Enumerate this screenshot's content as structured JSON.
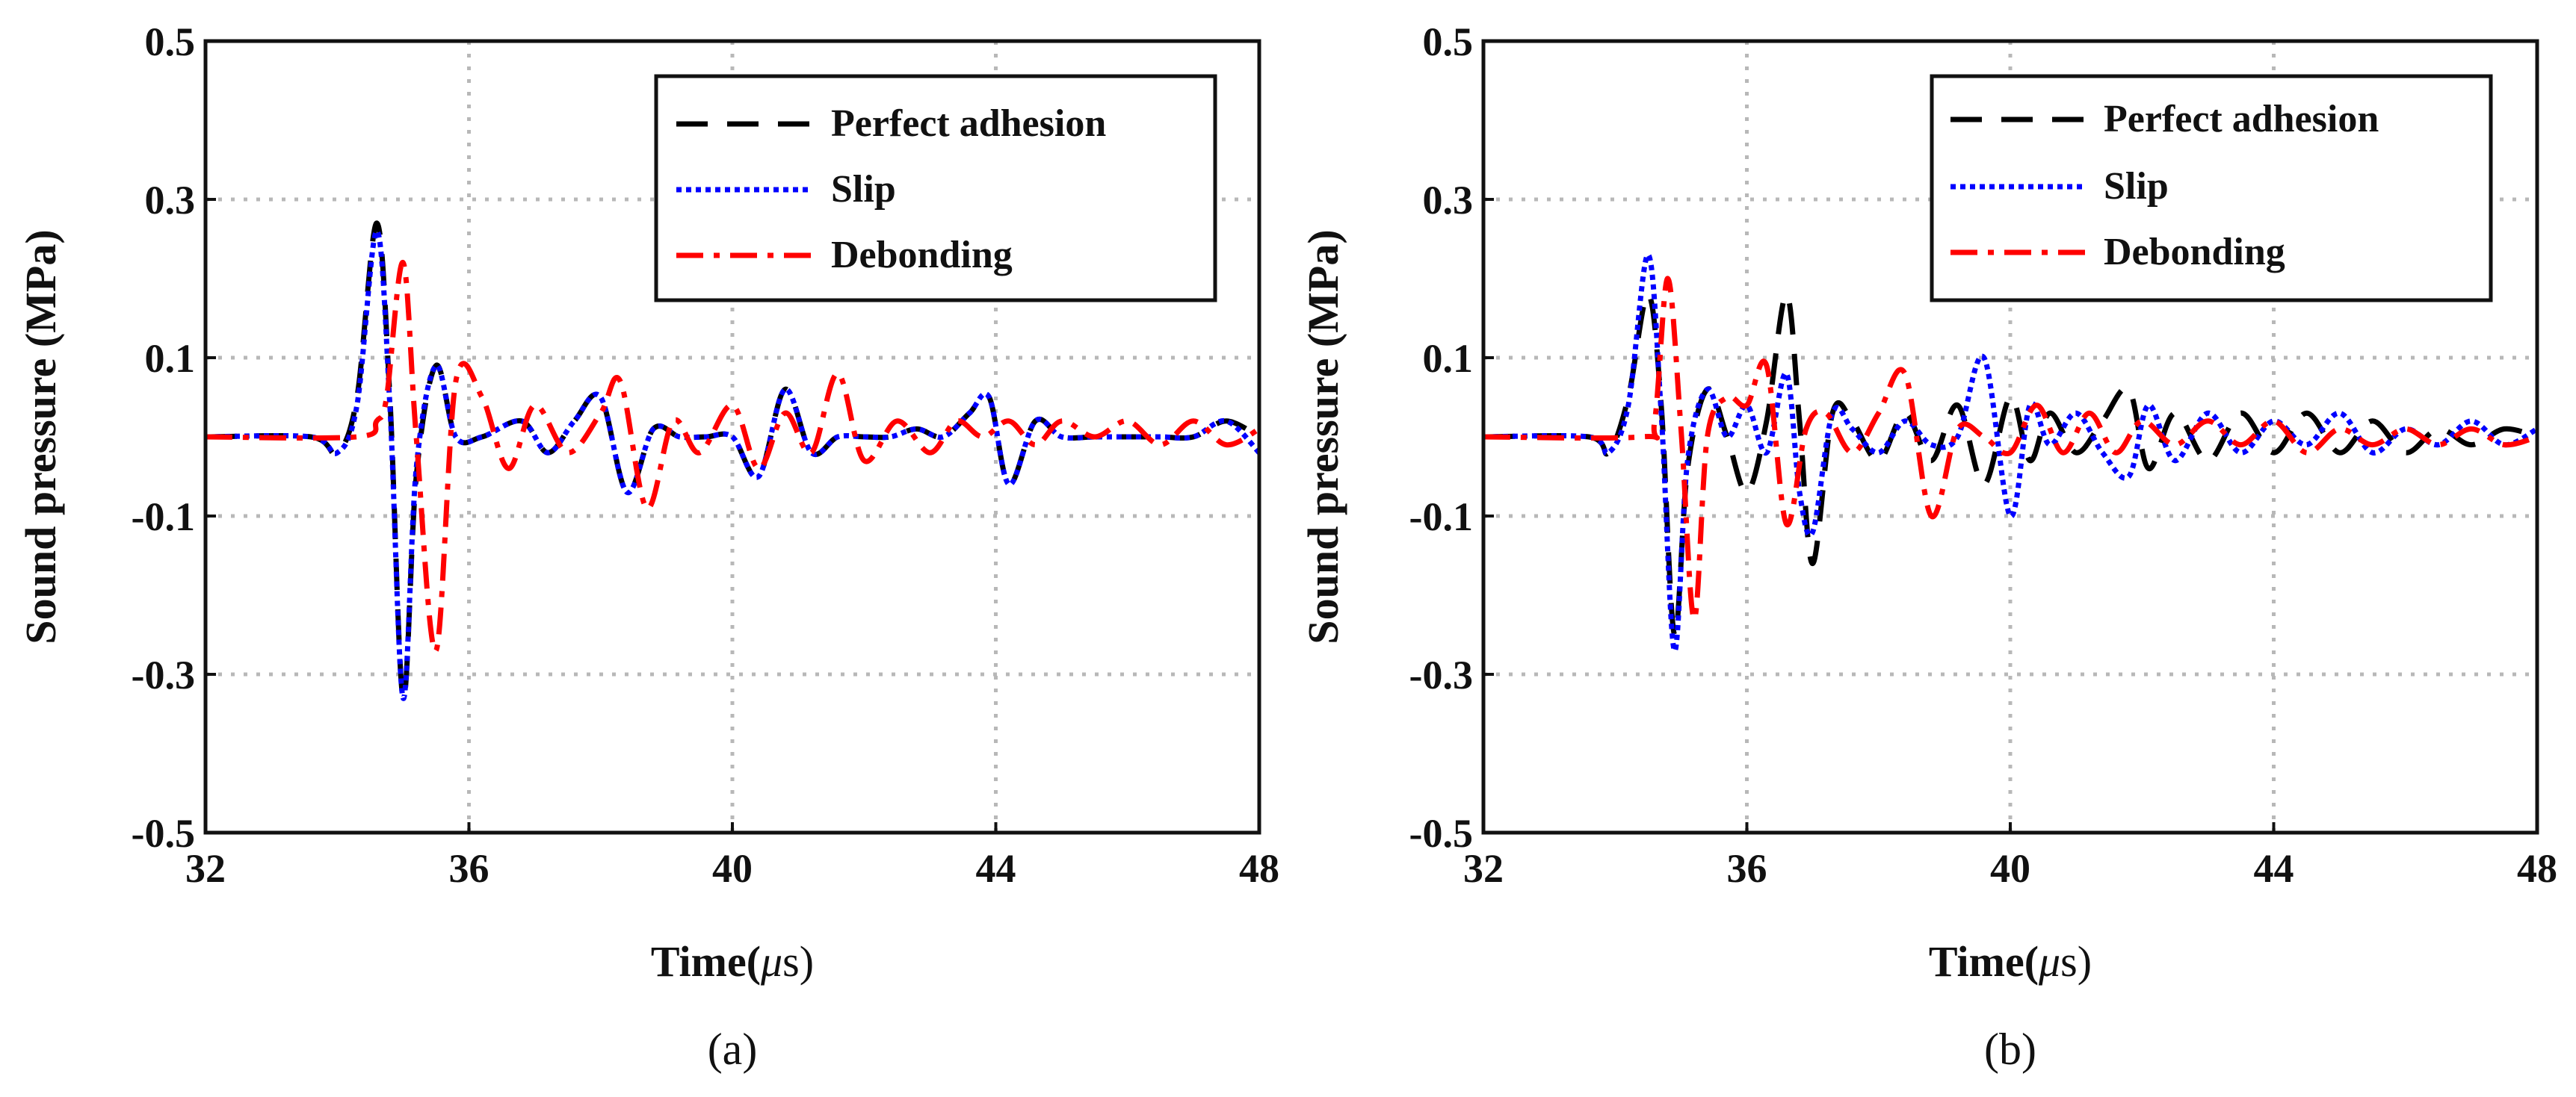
{
  "colors": {
    "perfect": "#000000",
    "slip": "#0000ff",
    "debonding": "#ff0000",
    "grid": "#b8b8b8"
  },
  "chart_data": [
    {
      "type": "line",
      "caption": "(a)",
      "xlabel_text": "Time(",
      "xlabel_mu": "μ",
      "xlabel_unit": "s)",
      "ylabel": "Sound pressure (MPa)",
      "xlim": [
        32,
        48
      ],
      "ylim": [
        -0.5,
        0.5
      ],
      "xticks": [
        32,
        36,
        40,
        44,
        48
      ],
      "yticks": [
        -0.5,
        -0.3,
        -0.1,
        0.1,
        0.3,
        0.5
      ],
      "xtick_labels": [
        "32",
        "36",
        "40",
        "44",
        "48"
      ],
      "ytick_labels": [
        "-0.5",
        "-0.3",
        "-0.1",
        "0.1",
        "0.3",
        "0.5"
      ],
      "grid": true,
      "legend_position": "top-right",
      "series": [
        {
          "name": "Perfect adhesion",
          "style": "dashed",
          "color": "#000000",
          "x": [
            32,
            33.6,
            34.0,
            34.3,
            34.6,
            34.8,
            35.0,
            35.2,
            35.5,
            35.8,
            36.2,
            36.8,
            37.2,
            37.6,
            38.0,
            38.4,
            38.8,
            39.2,
            39.6,
            40.0,
            40.4,
            40.8,
            41.2,
            41.6,
            42.0,
            42.4,
            42.8,
            43.2,
            43.6,
            43.9,
            44.2,
            44.6,
            45.0,
            45.5,
            46.0,
            46.5,
            47.0,
            47.5,
            48.0
          ],
          "y": [
            0,
            0,
            -0.02,
            0.05,
            0.27,
            0.05,
            -0.33,
            -0.05,
            0.09,
            0.0,
            0.0,
            0.02,
            -0.02,
            0.02,
            0.05,
            -0.07,
            0.01,
            0.0,
            0.0,
            0.0,
            -0.05,
            0.06,
            -0.02,
            0.0,
            0.0,
            0.0,
            0.01,
            0.0,
            0.03,
            0.05,
            -0.06,
            0.02,
            0.0,
            0.0,
            0.0,
            0.0,
            0.0,
            0.02,
            0.0
          ]
        },
        {
          "name": "Slip",
          "style": "dotted",
          "color": "#0000ff",
          "x": [
            32,
            33.6,
            34.0,
            34.3,
            34.6,
            34.8,
            35.0,
            35.2,
            35.5,
            35.8,
            36.2,
            36.8,
            37.2,
            37.6,
            38.0,
            38.4,
            38.8,
            39.2,
            39.6,
            40.0,
            40.4,
            40.8,
            41.2,
            41.6,
            42.0,
            42.4,
            42.8,
            43.2,
            43.6,
            43.9,
            44.2,
            44.6,
            45.0,
            45.5,
            46.0,
            46.5,
            47.0,
            47.5,
            48.0
          ],
          "y": [
            0,
            0,
            -0.02,
            0.04,
            0.26,
            0.04,
            -0.33,
            -0.04,
            0.09,
            0.0,
            0.0,
            0.02,
            -0.02,
            0.02,
            0.05,
            -0.07,
            0.01,
            0.0,
            0.0,
            0.0,
            -0.05,
            0.06,
            -0.02,
            0.0,
            0.0,
            0.0,
            0.01,
            0.0,
            0.03,
            0.05,
            -0.06,
            0.02,
            0.0,
            0.0,
            0.0,
            0.0,
            0.0,
            0.02,
            -0.02
          ]
        },
        {
          "name": "Debonding",
          "style": "dashdot",
          "color": "#ff0000",
          "x": [
            32,
            34.3,
            34.6,
            34.75,
            35.0,
            35.2,
            35.5,
            35.8,
            36.2,
            36.6,
            37.0,
            37.5,
            38.0,
            38.3,
            38.7,
            39.1,
            39.5,
            40.0,
            40.4,
            40.8,
            41.2,
            41.6,
            42.0,
            42.5,
            43.0,
            43.4,
            43.8,
            44.2,
            44.6,
            45.0,
            45.5,
            46.0,
            46.5,
            47.0,
            47.5,
            48.0
          ],
          "y": [
            0,
            0,
            0.02,
            0.05,
            0.22,
            0.0,
            -0.27,
            0.07,
            0.05,
            -0.04,
            0.04,
            -0.02,
            0.03,
            0.07,
            -0.09,
            0.02,
            -0.02,
            0.04,
            -0.04,
            0.03,
            -0.02,
            0.08,
            -0.03,
            0.02,
            -0.02,
            0.02,
            0.0,
            0.02,
            -0.01,
            0.02,
            0.0,
            0.02,
            -0.01,
            0.02,
            -0.01,
            0.01
          ]
        }
      ]
    },
    {
      "type": "line",
      "caption": "(b)",
      "xlabel_text": "Time(",
      "xlabel_mu": "μ",
      "xlabel_unit": "s)",
      "ylabel": "Sound pressure (MPa)",
      "xlim": [
        32,
        48
      ],
      "ylim": [
        -0.5,
        0.5
      ],
      "xticks": [
        32,
        36,
        40,
        44,
        48
      ],
      "yticks": [
        -0.5,
        -0.3,
        -0.1,
        0.1,
        0.3,
        0.5
      ],
      "xtick_labels": [
        "32",
        "36",
        "40",
        "44",
        "48"
      ],
      "ytick_labels": [
        "-0.5",
        "-0.3",
        "-0.1",
        "0.1",
        "0.3",
        "0.5"
      ],
      "grid": true,
      "legend_position": "top-right",
      "series": [
        {
          "name": "Perfect adhesion",
          "style": "dashed",
          "color": "#000000",
          "x": [
            32,
            33.6,
            33.9,
            34.2,
            34.5,
            34.7,
            34.9,
            35.1,
            35.4,
            35.7,
            36.0,
            36.3,
            36.6,
            36.8,
            37.0,
            37.3,
            37.6,
            38.0,
            38.4,
            38.8,
            39.2,
            39.6,
            40.0,
            40.3,
            40.6,
            41.0,
            41.4,
            41.8,
            42.1,
            42.5,
            43.0,
            43.5,
            44.0,
            44.5,
            45.0,
            45.5,
            46.0,
            46.5,
            47.0,
            47.5,
            48.0
          ],
          "y": [
            0,
            0,
            -0.02,
            0.05,
            0.18,
            0.04,
            -0.25,
            -0.04,
            0.06,
            0.0,
            -0.07,
            0.02,
            0.18,
            0.02,
            -0.16,
            0.03,
            0.02,
            -0.03,
            0.03,
            -0.03,
            0.04,
            -0.06,
            0.05,
            -0.03,
            0.03,
            -0.02,
            0.02,
            0.06,
            -0.04,
            0.03,
            -0.03,
            0.03,
            -0.02,
            0.03,
            -0.02,
            0.02,
            -0.02,
            0.01,
            -0.01,
            0.01,
            0.0
          ]
        },
        {
          "name": "Slip",
          "style": "dotted",
          "color": "#0000ff",
          "x": [
            32,
            33.6,
            33.9,
            34.2,
            34.5,
            34.7,
            34.9,
            35.1,
            35.4,
            35.7,
            36.0,
            36.3,
            36.6,
            36.8,
            37.0,
            37.3,
            37.6,
            38.0,
            38.4,
            38.8,
            39.2,
            39.6,
            40.0,
            40.3,
            40.6,
            41.0,
            41.4,
            41.8,
            42.1,
            42.5,
            43.0,
            43.5,
            44.0,
            44.5,
            45.0,
            45.5,
            46.0,
            46.5,
            47.0,
            47.5,
            48.0
          ],
          "y": [
            0,
            0,
            -0.02,
            0.04,
            0.23,
            0.03,
            -0.27,
            -0.03,
            0.06,
            0.0,
            0.04,
            -0.02,
            0.08,
            -0.07,
            -0.12,
            0.03,
            0.01,
            -0.02,
            0.02,
            -0.01,
            0.0,
            0.1,
            -0.1,
            0.04,
            -0.01,
            0.03,
            -0.02,
            -0.05,
            0.04,
            -0.03,
            0.03,
            -0.02,
            0.02,
            -0.01,
            0.03,
            -0.02,
            0.01,
            -0.01,
            0.02,
            -0.01,
            0.01
          ]
        },
        {
          "name": "Debonding",
          "style": "dashdot",
          "color": "#ff0000",
          "x": [
            32,
            34.4,
            34.6,
            34.8,
            35.0,
            35.2,
            35.4,
            35.7,
            36.0,
            36.3,
            36.6,
            36.9,
            37.2,
            37.6,
            38.0,
            38.4,
            38.8,
            39.2,
            39.6,
            40.0,
            40.4,
            40.8,
            41.2,
            41.6,
            42.0,
            42.5,
            43.0,
            43.5,
            44.0,
            44.5,
            45.0,
            45.5,
            46.0,
            46.5,
            47.0,
            47.5,
            48.0
          ],
          "y": [
            0,
            0,
            0.02,
            0.2,
            0.01,
            -0.23,
            0.0,
            0.05,
            0.04,
            0.09,
            -0.11,
            0.01,
            0.03,
            -0.02,
            0.03,
            0.08,
            -0.1,
            0.01,
            0.0,
            -0.02,
            0.04,
            -0.02,
            0.03,
            -0.02,
            0.02,
            -0.01,
            0.02,
            -0.01,
            0.02,
            -0.02,
            0.01,
            -0.01,
            0.01,
            -0.01,
            0.01,
            -0.01,
            0.0
          ]
        }
      ]
    }
  ]
}
